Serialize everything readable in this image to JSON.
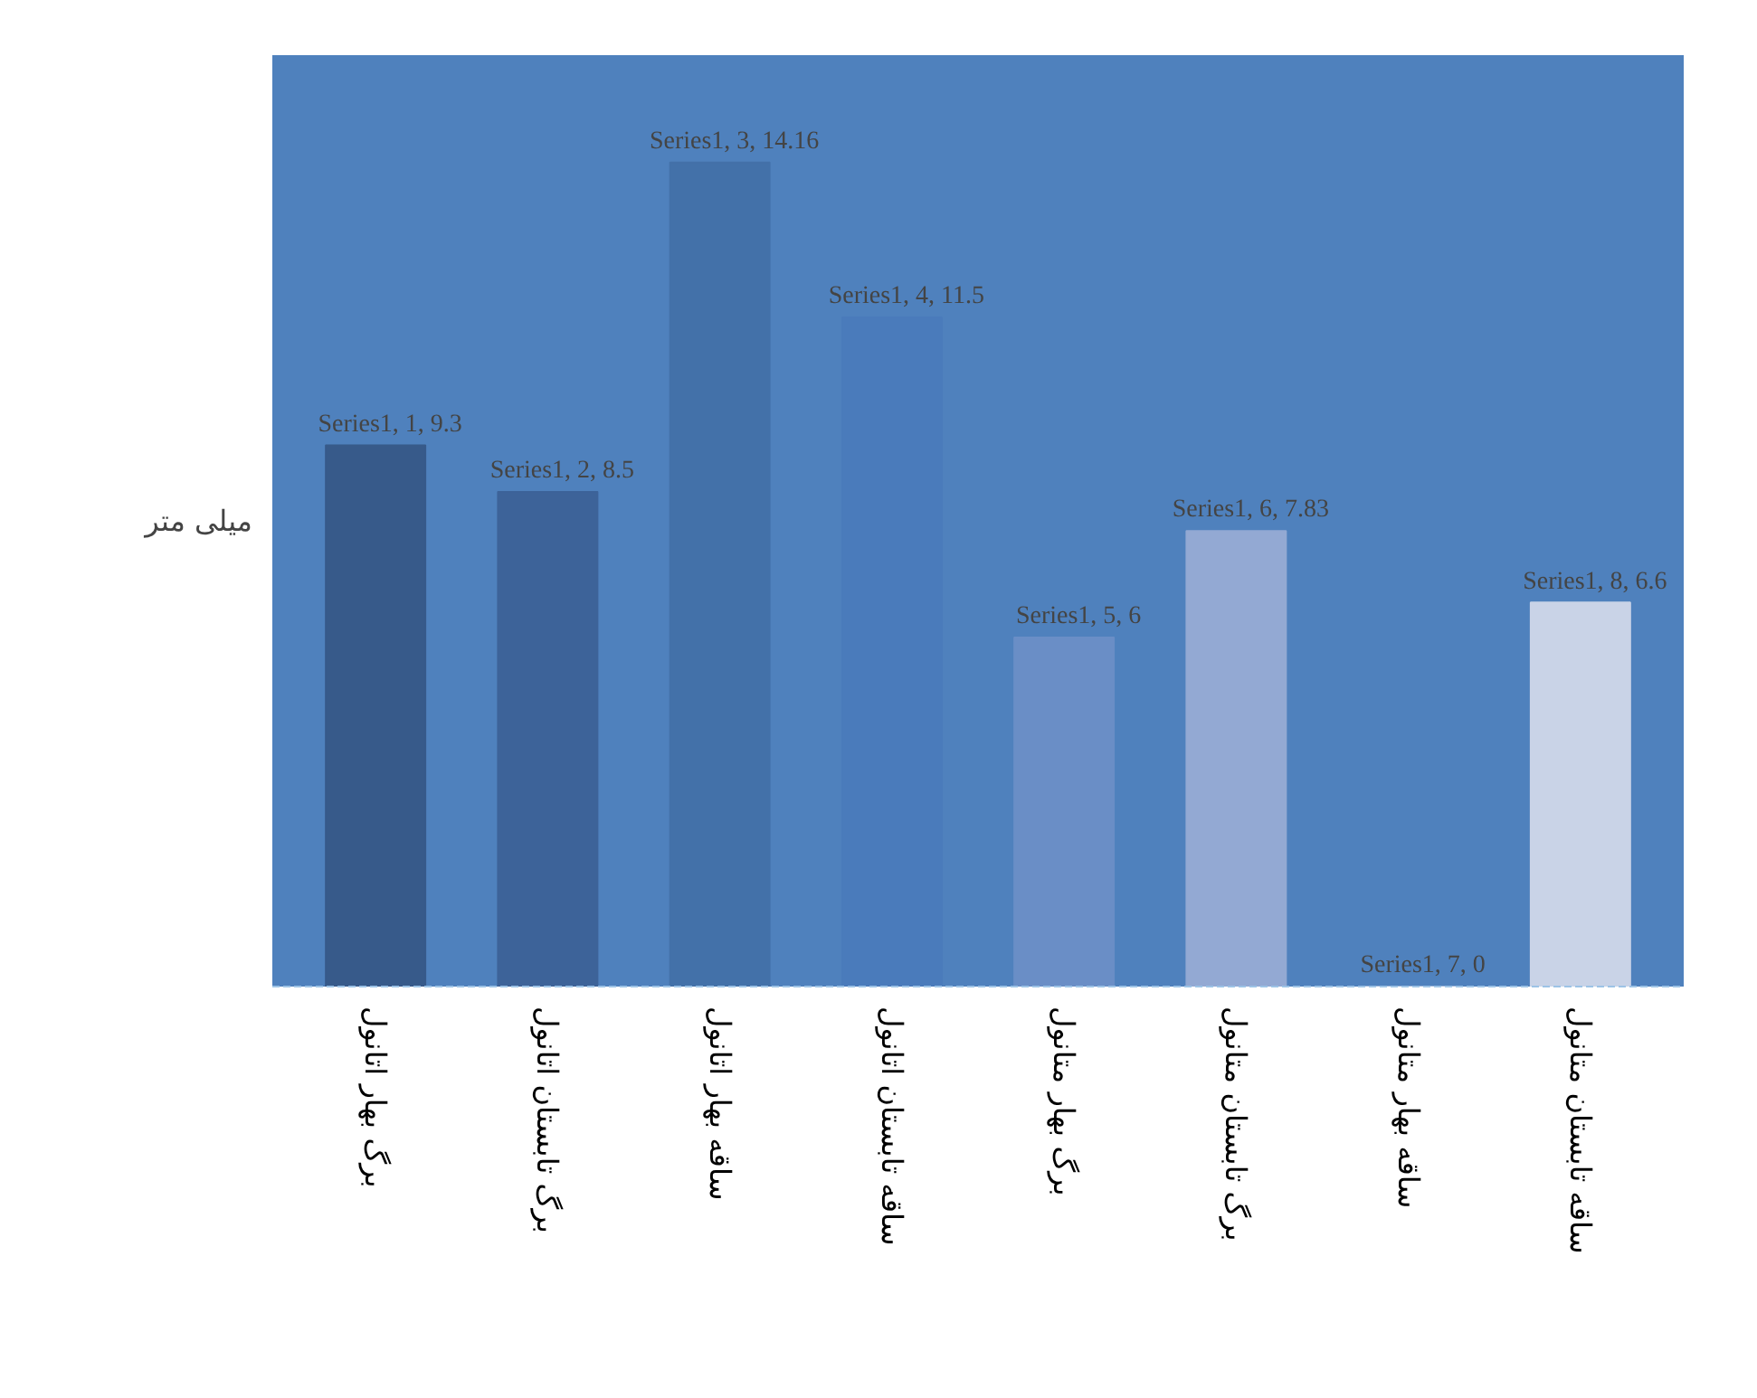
{
  "chart_data": {
    "type": "bar",
    "ylabel": "میلی متر",
    "categories": [
      "برگ بهار اتانول",
      "برگ تابستان اتانول",
      "ساقه بهار اتانول",
      "ساقه تابستان اتانول",
      "برگ بهار متانول",
      "برگ تابستان متانول",
      "ساقه بهار متانول",
      "ساقه تابستان متانول"
    ],
    "values": [
      9.3,
      8.5,
      14.16,
      11.5,
      6,
      7.83,
      0,
      6.6
    ],
    "colors": [
      "#375a8a",
      "#3d6399",
      "#4371a9",
      "#4a7bbb",
      "#6a8ec6",
      "#93a9d3",
      "#b5c3e0",
      "#c9d3e7"
    ],
    "value_labels": [
      "Series1, 1, 9.3",
      "Series1, 2, 8.5",
      "Series1, 3, 14.16",
      "Series1, 4, 11.5",
      "Series1, 5, 6",
      "Series1, 6, 7.83",
      "Series1, 7, 0",
      "Series1, 8, 6.6"
    ],
    "ylim": [
      0,
      16
    ],
    "tick_labels": "x",
    "grid": false
  }
}
